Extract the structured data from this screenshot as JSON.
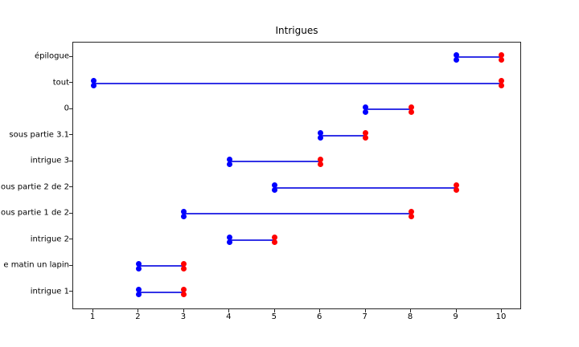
{
  "title": "Intrigues",
  "chart_data": {
    "type": "line",
    "subtype": "gantt-interval",
    "title": "Intrigues",
    "xlabel": "",
    "ylabel": "",
    "xlim": [
      0.56,
      10.44
    ],
    "x_ticks": [
      1,
      2,
      3,
      4,
      5,
      6,
      7,
      8,
      9,
      10
    ],
    "grid": false,
    "legend_position": "none",
    "categories_top_to_bottom": [
      "épilogue",
      "tout",
      "0",
      "sous partie 3.1",
      "intrigue 3",
      "ous partie 2 de 2",
      "ous partie 1 de 2",
      "intrigue 2",
      "e matin un lapin",
      "intrigue 1"
    ],
    "tasks": [
      {
        "label": "épilogue",
        "start": 9,
        "end": 10
      },
      {
        "label": "tout",
        "start": 1,
        "end": 10
      },
      {
        "label": "0",
        "start": 7,
        "end": 8
      },
      {
        "label": "sous partie 3.1",
        "start": 6,
        "end": 7
      },
      {
        "label": "intrigue 3",
        "start": 4,
        "end": 6
      },
      {
        "label": "ous partie 2 de 2",
        "start": 5,
        "end": 9
      },
      {
        "label": "ous partie 1 de 2",
        "start": 3,
        "end": 8
      },
      {
        "label": "intrigue 2",
        "start": 4,
        "end": 5
      },
      {
        "label": "e matin un lapin",
        "start": 2,
        "end": 3
      },
      {
        "label": "intrigue 1",
        "start": 2,
        "end": 3
      }
    ],
    "marker_style": "double-dot",
    "colors": {
      "line": "#3333e6",
      "start_marker": "#0000ff",
      "end_marker": "#ff0000",
      "axis": "#262626",
      "text": "#000000",
      "background": "#ffffff"
    }
  }
}
